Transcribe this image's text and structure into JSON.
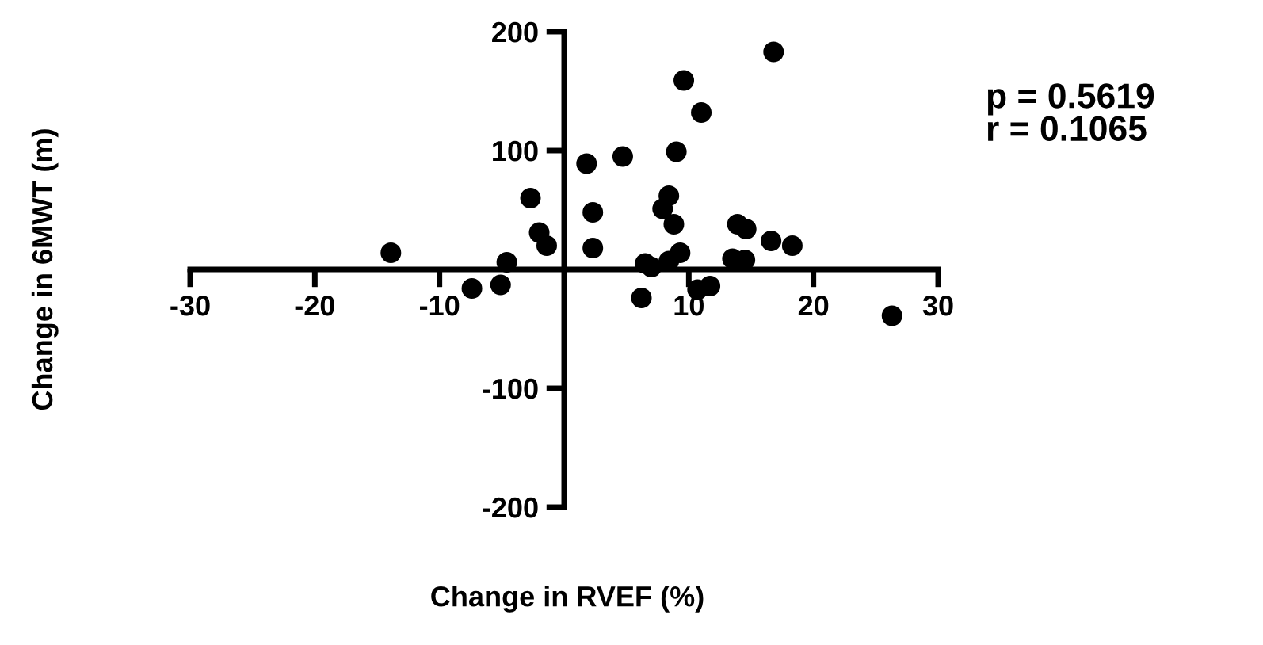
{
  "chart_data": {
    "type": "scatter",
    "xlabel": "Change in RVEF (%)",
    "ylabel": "Change in 6MWT (m)",
    "annotations": [
      "p = 0.5619\nr = 0.1065"
    ],
    "xlim": [
      -30,
      30
    ],
    "xticks": [
      -30,
      -20,
      -10,
      10,
      20,
      30
    ],
    "ylim": [
      -200,
      200
    ],
    "yticks": [
      -200,
      -100,
      100,
      200
    ],
    "grid": false,
    "marker": "circle",
    "series": [
      {
        "color": "#000000",
        "x": [
          -13.9,
          -7.4,
          -5.1,
          -4.6,
          -2.7,
          -2.0,
          -1.4,
          1.8,
          4.7,
          2.3,
          2.3,
          6.2,
          6.5,
          7.0,
          16.8,
          9.6,
          11.0,
          9.0,
          8.4,
          7.9,
          8.8,
          9.3,
          8.4,
          13.9,
          14.6,
          13.5,
          14.5,
          16.6,
          18.3,
          10.7,
          11.7,
          26.3
        ],
        "values": [
          14,
          -16,
          -13,
          6,
          60,
          31,
          20,
          89,
          95,
          48,
          18,
          -24,
          5,
          2,
          183,
          159,
          132,
          99,
          62,
          51,
          38,
          14,
          7,
          38,
          34,
          9,
          8,
          24,
          20,
          -17,
          -14,
          -39
        ]
      }
    ]
  }
}
